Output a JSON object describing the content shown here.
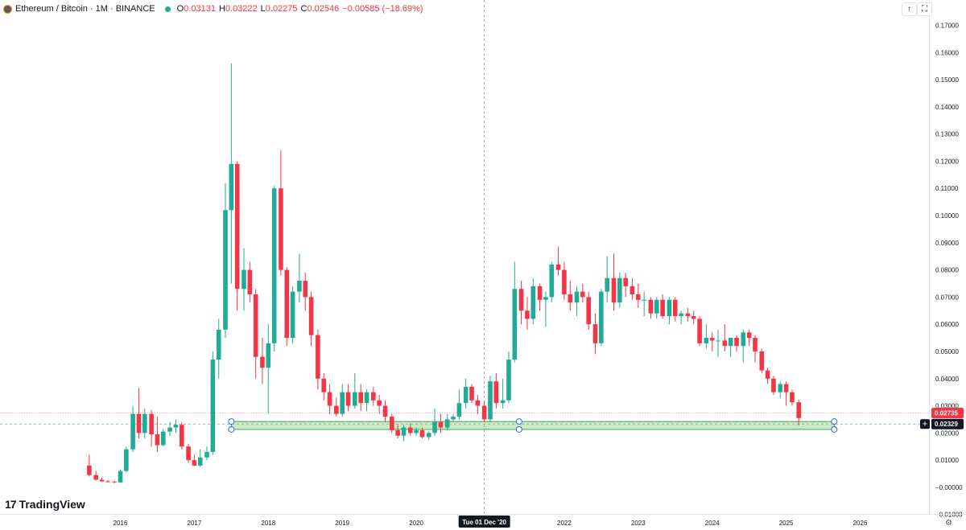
{
  "header": {
    "symbol": "Ethereum / Bitcoin · 1M · BINANCE",
    "open_label": "O",
    "open": "0.03131",
    "high_label": "H",
    "high": "0.03222",
    "low_label": "L",
    "low": "0.02275",
    "close_label": "C",
    "close": "0.02546",
    "change": "−0.00585 (−18.69%)"
  },
  "toolbar": {
    "arrow_icon": "arrow-up-icon",
    "fullscreen_icon": "fullscreen-icon"
  },
  "brand": {
    "name": "TradingView"
  },
  "colors": {
    "up": "#22ab94",
    "down": "#f23645",
    "zone_fill": "#c9ecc4",
    "zone_stroke": "#43a047",
    "crosshair_label_bg": "#131722"
  },
  "chart_data": {
    "type": "candlestick",
    "y_axis_ticks": [
      "0.17000",
      "0.16000",
      "0.15000",
      "0.14000",
      "0.13000",
      "0.12000",
      "0.11000",
      "0.10000",
      "0.09000",
      "0.08000",
      "0.07000",
      "0.06000",
      "0.05000",
      "0.04000",
      "0.03000",
      "0.02000",
      "0.01000",
      "−0.00000",
      "−0.01000"
    ],
    "ylim": [
      -0.012,
      0.175
    ],
    "x_axis_labels": [
      "2016",
      "2017",
      "2018",
      "2019",
      "2020",
      "2022",
      "2023",
      "2024",
      "2025",
      "2026"
    ],
    "x_axis_years": [
      2016,
      2017,
      2018,
      2019,
      2020,
      2022,
      2023,
      2024,
      2025,
      2026
    ],
    "xlim": [
      2015.3,
      2026.6
    ],
    "price_labels": [
      {
        "value": 0.02735,
        "text": "0.02735",
        "color": "#f23645"
      },
      {
        "value": 0.02329,
        "text": "0.02329",
        "color": "#131722"
      }
    ],
    "crosshair": {
      "x": 2020.92,
      "y": 0.02329,
      "date_label": "Tue 01 Dec '20"
    },
    "support_zone": {
      "from": 2017.5,
      "to": 2025.65,
      "top": 0.0242,
      "bottom": 0.0213
    },
    "candles": [
      {
        "t": 2015.58,
        "o": 0.008,
        "h": 0.012,
        "l": 0.004,
        "c": 0.0045
      },
      {
        "t": 2015.67,
        "o": 0.0045,
        "h": 0.006,
        "l": 0.0025,
        "c": 0.0028
      },
      {
        "t": 2015.75,
        "o": 0.0028,
        "h": 0.0035,
        "l": 0.002,
        "c": 0.0022
      },
      {
        "t": 2015.83,
        "o": 0.0022,
        "h": 0.0028,
        "l": 0.0018,
        "c": 0.0021
      },
      {
        "t": 2015.92,
        "o": 0.0021,
        "h": 0.0025,
        "l": 0.0015,
        "c": 0.0018
      },
      {
        "t": 2016.0,
        "o": 0.0018,
        "h": 0.0065,
        "l": 0.0017,
        "c": 0.006
      },
      {
        "t": 2016.08,
        "o": 0.006,
        "h": 0.015,
        "l": 0.0055,
        "c": 0.014
      },
      {
        "t": 2016.17,
        "o": 0.014,
        "h": 0.03,
        "l": 0.013,
        "c": 0.027
      },
      {
        "t": 2016.25,
        "o": 0.027,
        "h": 0.0365,
        "l": 0.018,
        "c": 0.02
      },
      {
        "t": 2016.33,
        "o": 0.02,
        "h": 0.029,
        "l": 0.018,
        "c": 0.027
      },
      {
        "t": 2016.42,
        "o": 0.027,
        "h": 0.0285,
        "l": 0.015,
        "c": 0.0195
      },
      {
        "t": 2016.5,
        "o": 0.0195,
        "h": 0.026,
        "l": 0.013,
        "c": 0.0155
      },
      {
        "t": 2016.58,
        "o": 0.0155,
        "h": 0.0215,
        "l": 0.015,
        "c": 0.0205
      },
      {
        "t": 2016.67,
        "o": 0.0205,
        "h": 0.024,
        "l": 0.019,
        "c": 0.022
      },
      {
        "t": 2016.75,
        "o": 0.022,
        "h": 0.025,
        "l": 0.02,
        "c": 0.023
      },
      {
        "t": 2016.83,
        "o": 0.023,
        "h": 0.024,
        "l": 0.014,
        "c": 0.015
      },
      {
        "t": 2016.92,
        "o": 0.015,
        "h": 0.016,
        "l": 0.009,
        "c": 0.01
      },
      {
        "t": 2017.0,
        "o": 0.01,
        "h": 0.012,
        "l": 0.008,
        "c": 0.008
      },
      {
        "t": 2017.08,
        "o": 0.008,
        "h": 0.014,
        "l": 0.0075,
        "c": 0.011
      },
      {
        "t": 2017.17,
        "o": 0.011,
        "h": 0.015,
        "l": 0.01,
        "c": 0.013
      },
      {
        "t": 2017.25,
        "o": 0.013,
        "h": 0.05,
        "l": 0.012,
        "c": 0.047
      },
      {
        "t": 2017.33,
        "o": 0.047,
        "h": 0.062,
        "l": 0.04,
        "c": 0.058
      },
      {
        "t": 2017.42,
        "o": 0.058,
        "h": 0.112,
        "l": 0.055,
        "c": 0.102
      },
      {
        "t": 2017.5,
        "o": 0.102,
        "h": 0.156,
        "l": 0.075,
        "c": 0.119
      },
      {
        "t": 2017.58,
        "o": 0.119,
        "h": 0.12,
        "l": 0.065,
        "c": 0.073
      },
      {
        "t": 2017.67,
        "o": 0.073,
        "h": 0.088,
        "l": 0.065,
        "c": 0.08
      },
      {
        "t": 2017.75,
        "o": 0.08,
        "h": 0.083,
        "l": 0.068,
        "c": 0.071
      },
      {
        "t": 2017.83,
        "o": 0.071,
        "h": 0.073,
        "l": 0.04,
        "c": 0.048
      },
      {
        "t": 2017.92,
        "o": 0.048,
        "h": 0.055,
        "l": 0.038,
        "c": 0.044
      },
      {
        "t": 2018.0,
        "o": 0.044,
        "h": 0.06,
        "l": 0.027,
        "c": 0.053
      },
      {
        "t": 2018.08,
        "o": 0.053,
        "h": 0.111,
        "l": 0.05,
        "c": 0.11
      },
      {
        "t": 2018.17,
        "o": 0.11,
        "h": 0.124,
        "l": 0.078,
        "c": 0.08
      },
      {
        "t": 2018.25,
        "o": 0.08,
        "h": 0.081,
        "l": 0.052,
        "c": 0.055
      },
      {
        "t": 2018.33,
        "o": 0.055,
        "h": 0.074,
        "l": 0.053,
        "c": 0.072
      },
      {
        "t": 2018.42,
        "o": 0.072,
        "h": 0.086,
        "l": 0.068,
        "c": 0.076
      },
      {
        "t": 2018.5,
        "o": 0.076,
        "h": 0.079,
        "l": 0.065,
        "c": 0.07
      },
      {
        "t": 2018.58,
        "o": 0.07,
        "h": 0.072,
        "l": 0.052,
        "c": 0.056
      },
      {
        "t": 2018.67,
        "o": 0.056,
        "h": 0.058,
        "l": 0.036,
        "c": 0.04
      },
      {
        "t": 2018.75,
        "o": 0.04,
        "h": 0.042,
        "l": 0.032,
        "c": 0.035
      },
      {
        "t": 2018.83,
        "o": 0.035,
        "h": 0.038,
        "l": 0.027,
        "c": 0.03
      },
      {
        "t": 2018.92,
        "o": 0.03,
        "h": 0.033,
        "l": 0.026,
        "c": 0.027
      },
      {
        "t": 2019.0,
        "o": 0.027,
        "h": 0.038,
        "l": 0.026,
        "c": 0.035
      },
      {
        "t": 2019.08,
        "o": 0.035,
        "h": 0.038,
        "l": 0.028,
        "c": 0.03
      },
      {
        "t": 2019.17,
        "o": 0.03,
        "h": 0.042,
        "l": 0.029,
        "c": 0.035
      },
      {
        "t": 2019.25,
        "o": 0.035,
        "h": 0.038,
        "l": 0.028,
        "c": 0.031
      },
      {
        "t": 2019.33,
        "o": 0.031,
        "h": 0.036,
        "l": 0.028,
        "c": 0.035
      },
      {
        "t": 2019.42,
        "o": 0.035,
        "h": 0.037,
        "l": 0.03,
        "c": 0.032
      },
      {
        "t": 2019.5,
        "o": 0.032,
        "h": 0.034,
        "l": 0.027,
        "c": 0.03
      },
      {
        "t": 2019.58,
        "o": 0.03,
        "h": 0.032,
        "l": 0.024,
        "c": 0.026
      },
      {
        "t": 2019.67,
        "o": 0.026,
        "h": 0.027,
        "l": 0.02,
        "c": 0.021
      },
      {
        "t": 2019.75,
        "o": 0.021,
        "h": 0.023,
        "l": 0.018,
        "c": 0.019
      },
      {
        "t": 2019.83,
        "o": 0.019,
        "h": 0.023,
        "l": 0.017,
        "c": 0.022
      },
      {
        "t": 2019.92,
        "o": 0.022,
        "h": 0.0235,
        "l": 0.019,
        "c": 0.02
      },
      {
        "t": 2020.0,
        "o": 0.02,
        "h": 0.022,
        "l": 0.019,
        "c": 0.021
      },
      {
        "t": 2020.08,
        "o": 0.021,
        "h": 0.022,
        "l": 0.018,
        "c": 0.0185
      },
      {
        "t": 2020.17,
        "o": 0.0185,
        "h": 0.0205,
        "l": 0.0175,
        "c": 0.02
      },
      {
        "t": 2020.25,
        "o": 0.02,
        "h": 0.029,
        "l": 0.019,
        "c": 0.024
      },
      {
        "t": 2020.33,
        "o": 0.024,
        "h": 0.027,
        "l": 0.02,
        "c": 0.022
      },
      {
        "t": 2020.42,
        "o": 0.022,
        "h": 0.027,
        "l": 0.021,
        "c": 0.025
      },
      {
        "t": 2020.5,
        "o": 0.025,
        "h": 0.027,
        "l": 0.024,
        "c": 0.026
      },
      {
        "t": 2020.58,
        "o": 0.026,
        "h": 0.036,
        "l": 0.025,
        "c": 0.031
      },
      {
        "t": 2020.67,
        "o": 0.031,
        "h": 0.04,
        "l": 0.029,
        "c": 0.037
      },
      {
        "t": 2020.75,
        "o": 0.037,
        "h": 0.038,
        "l": 0.031,
        "c": 0.032
      },
      {
        "t": 2020.83,
        "o": 0.032,
        "h": 0.034,
        "l": 0.027,
        "c": 0.03
      },
      {
        "t": 2020.92,
        "o": 0.03,
        "h": 0.032,
        "l": 0.024,
        "c": 0.025
      },
      {
        "t": 2021.0,
        "o": 0.025,
        "h": 0.041,
        "l": 0.024,
        "c": 0.039
      },
      {
        "t": 2021.08,
        "o": 0.039,
        "h": 0.042,
        "l": 0.029,
        "c": 0.031
      },
      {
        "t": 2021.17,
        "o": 0.031,
        "h": 0.04,
        "l": 0.029,
        "c": 0.032
      },
      {
        "t": 2021.25,
        "o": 0.032,
        "h": 0.05,
        "l": 0.031,
        "c": 0.047
      },
      {
        "t": 2021.33,
        "o": 0.047,
        "h": 0.083,
        "l": 0.046,
        "c": 0.073
      },
      {
        "t": 2021.42,
        "o": 0.073,
        "h": 0.076,
        "l": 0.06,
        "c": 0.065
      },
      {
        "t": 2021.5,
        "o": 0.065,
        "h": 0.07,
        "l": 0.058,
        "c": 0.062
      },
      {
        "t": 2021.58,
        "o": 0.062,
        "h": 0.077,
        "l": 0.06,
        "c": 0.074
      },
      {
        "t": 2021.67,
        "o": 0.074,
        "h": 0.075,
        "l": 0.065,
        "c": 0.069
      },
      {
        "t": 2021.75,
        "o": 0.069,
        "h": 0.072,
        "l": 0.059,
        "c": 0.07
      },
      {
        "t": 2021.83,
        "o": 0.07,
        "h": 0.083,
        "l": 0.068,
        "c": 0.082
      },
      {
        "t": 2021.92,
        "o": 0.082,
        "h": 0.0885,
        "l": 0.078,
        "c": 0.08
      },
      {
        "t": 2022.0,
        "o": 0.08,
        "h": 0.083,
        "l": 0.069,
        "c": 0.071
      },
      {
        "t": 2022.08,
        "o": 0.071,
        "h": 0.076,
        "l": 0.065,
        "c": 0.068
      },
      {
        "t": 2022.17,
        "o": 0.068,
        "h": 0.074,
        "l": 0.063,
        "c": 0.072
      },
      {
        "t": 2022.25,
        "o": 0.072,
        "h": 0.075,
        "l": 0.068,
        "c": 0.07
      },
      {
        "t": 2022.33,
        "o": 0.07,
        "h": 0.072,
        "l": 0.058,
        "c": 0.06
      },
      {
        "t": 2022.42,
        "o": 0.06,
        "h": 0.064,
        "l": 0.049,
        "c": 0.053
      },
      {
        "t": 2022.5,
        "o": 0.053,
        "h": 0.073,
        "l": 0.052,
        "c": 0.072
      },
      {
        "t": 2022.58,
        "o": 0.072,
        "h": 0.085,
        "l": 0.068,
        "c": 0.077
      },
      {
        "t": 2022.67,
        "o": 0.077,
        "h": 0.086,
        "l": 0.065,
        "c": 0.068
      },
      {
        "t": 2022.75,
        "o": 0.068,
        "h": 0.079,
        "l": 0.066,
        "c": 0.077
      },
      {
        "t": 2022.83,
        "o": 0.077,
        "h": 0.079,
        "l": 0.07,
        "c": 0.074
      },
      {
        "t": 2022.92,
        "o": 0.074,
        "h": 0.077,
        "l": 0.069,
        "c": 0.071
      },
      {
        "t": 2023.0,
        "o": 0.071,
        "h": 0.075,
        "l": 0.066,
        "c": 0.069
      },
      {
        "t": 2023.08,
        "o": 0.069,
        "h": 0.072,
        "l": 0.063,
        "c": 0.069
      },
      {
        "t": 2023.17,
        "o": 0.069,
        "h": 0.07,
        "l": 0.062,
        "c": 0.064
      },
      {
        "t": 2023.25,
        "o": 0.064,
        "h": 0.07,
        "l": 0.062,
        "c": 0.069
      },
      {
        "t": 2023.33,
        "o": 0.069,
        "h": 0.071,
        "l": 0.062,
        "c": 0.063
      },
      {
        "t": 2023.42,
        "o": 0.063,
        "h": 0.07,
        "l": 0.06,
        "c": 0.069
      },
      {
        "t": 2023.5,
        "o": 0.069,
        "h": 0.07,
        "l": 0.061,
        "c": 0.063
      },
      {
        "t": 2023.58,
        "o": 0.063,
        "h": 0.065,
        "l": 0.06,
        "c": 0.064
      },
      {
        "t": 2023.67,
        "o": 0.064,
        "h": 0.066,
        "l": 0.061,
        "c": 0.063
      },
      {
        "t": 2023.75,
        "o": 0.063,
        "h": 0.065,
        "l": 0.06,
        "c": 0.062
      },
      {
        "t": 2023.83,
        "o": 0.062,
        "h": 0.063,
        "l": 0.052,
        "c": 0.053
      },
      {
        "t": 2023.92,
        "o": 0.053,
        "h": 0.06,
        "l": 0.051,
        "c": 0.055
      },
      {
        "t": 2024.0,
        "o": 0.055,
        "h": 0.057,
        "l": 0.05,
        "c": 0.054
      },
      {
        "t": 2024.08,
        "o": 0.054,
        "h": 0.058,
        "l": 0.048,
        "c": 0.054
      },
      {
        "t": 2024.17,
        "o": 0.054,
        "h": 0.06,
        "l": 0.05,
        "c": 0.052
      },
      {
        "t": 2024.25,
        "o": 0.052,
        "h": 0.055,
        "l": 0.048,
        "c": 0.055
      },
      {
        "t": 2024.33,
        "o": 0.055,
        "h": 0.056,
        "l": 0.05,
        "c": 0.052
      },
      {
        "t": 2024.42,
        "o": 0.052,
        "h": 0.058,
        "l": 0.046,
        "c": 0.057
      },
      {
        "t": 2024.5,
        "o": 0.057,
        "h": 0.058,
        "l": 0.052,
        "c": 0.055
      },
      {
        "t": 2024.58,
        "o": 0.055,
        "h": 0.056,
        "l": 0.046,
        "c": 0.05
      },
      {
        "t": 2024.67,
        "o": 0.05,
        "h": 0.051,
        "l": 0.042,
        "c": 0.043
      },
      {
        "t": 2024.75,
        "o": 0.043,
        "h": 0.044,
        "l": 0.038,
        "c": 0.04
      },
      {
        "t": 2024.83,
        "o": 0.04,
        "h": 0.041,
        "l": 0.034,
        "c": 0.035
      },
      {
        "t": 2024.92,
        "o": 0.035,
        "h": 0.039,
        "l": 0.033,
        "c": 0.038
      },
      {
        "t": 2025.0,
        "o": 0.038,
        "h": 0.039,
        "l": 0.03,
        "c": 0.035
      },
      {
        "t": 2025.08,
        "o": 0.035,
        "h": 0.036,
        "l": 0.03,
        "c": 0.0313
      },
      {
        "t": 2025.17,
        "o": 0.0313,
        "h": 0.0322,
        "l": 0.0228,
        "c": 0.0255
      }
    ]
  }
}
